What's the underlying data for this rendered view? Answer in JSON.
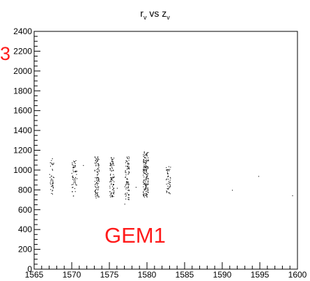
{
  "chart_data": {
    "type": "scatter",
    "title": {
      "r": "r",
      "r_sub": "v",
      "vs": " vs ",
      "z": "z",
      "z_sub": "v"
    },
    "xlim": [
      1565,
      1600
    ],
    "ylim": [
      0,
      2400
    ],
    "x_ticks": [
      1565,
      1570,
      1575,
      1580,
      1585,
      1590,
      1595,
      1600
    ],
    "y_ticks": [
      0,
      200,
      400,
      600,
      800,
      1000,
      1200,
      1400,
      1600,
      1800,
      2000,
      2200,
      2400
    ],
    "annotations": [
      {
        "text": "3",
        "color": "#ff1a1a"
      },
      {
        "text": "GEM1",
        "color": "#ff1a1a"
      }
    ],
    "grid": false,
    "legend": "none",
    "marker_color": "#000000",
    "point_clusters": [
      {
        "z_center": 1567.3,
        "z_spread": 0.3,
        "r_min": 760,
        "r_max": 1120,
        "count": 40
      },
      {
        "z_center": 1570.3,
        "z_spread": 0.35,
        "r_min": 740,
        "r_max": 1100,
        "count": 55
      },
      {
        "z_center": 1573.3,
        "z_spread": 0.3,
        "r_min": 720,
        "r_max": 1140,
        "count": 90
      },
      {
        "z_center": 1575.3,
        "z_spread": 0.3,
        "r_min": 730,
        "r_max": 1140,
        "count": 85
      },
      {
        "z_center": 1577.3,
        "z_spread": 0.3,
        "r_min": 700,
        "r_max": 1140,
        "count": 80
      },
      {
        "z_center": 1579.8,
        "z_spread": 0.35,
        "r_min": 730,
        "r_max": 1200,
        "count": 160
      },
      {
        "z_center": 1582.8,
        "z_spread": 0.3,
        "r_min": 750,
        "r_max": 1050,
        "count": 45
      }
    ],
    "isolated_points": [
      {
        "x": 1571.5,
        "y": 1050
      },
      {
        "x": 1576.0,
        "y": 820
      },
      {
        "x": 1577.0,
        "y": 660
      },
      {
        "x": 1578.5,
        "y": 830
      },
      {
        "x": 1591.3,
        "y": 800
      },
      {
        "x": 1594.8,
        "y": 940
      },
      {
        "x": 1599.3,
        "y": 745
      }
    ]
  }
}
